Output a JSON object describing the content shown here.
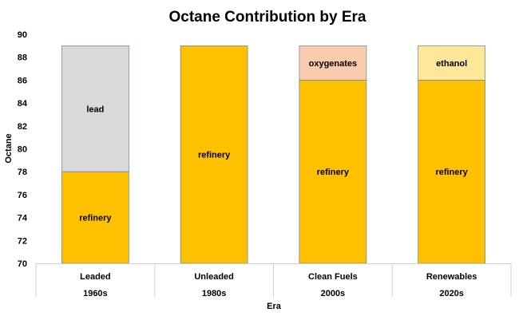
{
  "chart_data": {
    "type": "bar",
    "stacked": true,
    "title": "Octane Contribution by Era",
    "xlabel": "Era",
    "ylabel": "Octane",
    "ylim": [
      70,
      90
    ],
    "yticks": [
      "70",
      "72",
      "74",
      "76",
      "78",
      "80",
      "82",
      "84",
      "86",
      "88",
      "90"
    ],
    "grid": false,
    "categories": [
      {
        "name": "Leaded",
        "period": "1960s"
      },
      {
        "name": "Unleaded",
        "period": "1980s"
      },
      {
        "name": "Clean Fuels",
        "period": "2000s"
      },
      {
        "name": "Renewables",
        "period": "2020s"
      }
    ],
    "bars": [
      {
        "segments": [
          {
            "label": "refinery",
            "from": 70,
            "to": 78,
            "color": "#ffc000"
          },
          {
            "label": "lead",
            "from": 78,
            "to": 89,
            "color": "#d9d9d9"
          }
        ]
      },
      {
        "segments": [
          {
            "label": "refinery",
            "from": 70,
            "to": 89,
            "color": "#ffc000"
          }
        ]
      },
      {
        "segments": [
          {
            "label": "refinery",
            "from": 70,
            "to": 86,
            "color": "#ffc000"
          },
          {
            "label": "oxygenates",
            "from": 86,
            "to": 89,
            "color": "#f8cbad"
          }
        ]
      },
      {
        "segments": [
          {
            "label": "refinery",
            "from": 70,
            "to": 86,
            "color": "#ffc000"
          },
          {
            "label": "ethanol",
            "from": 86,
            "to": 89,
            "color": "#ffe699"
          }
        ]
      }
    ]
  }
}
